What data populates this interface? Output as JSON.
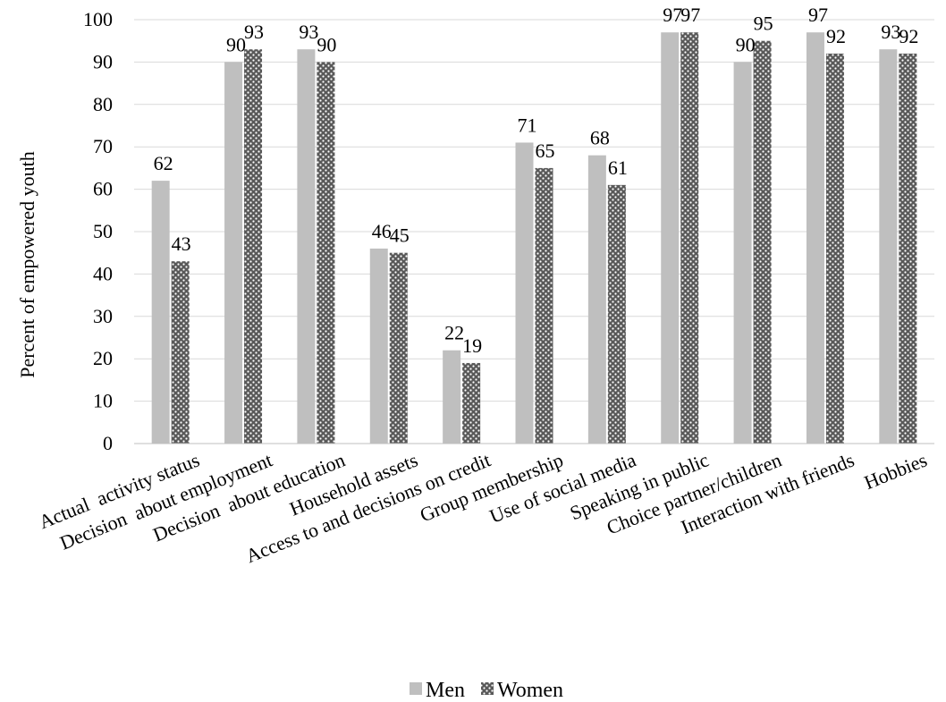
{
  "chart_data": {
    "type": "bar",
    "title": "",
    "xlabel": "",
    "ylabel": "Percent of empowered youth",
    "ylim": [
      0,
      100
    ],
    "yticks": [
      0,
      10,
      20,
      30,
      40,
      50,
      60,
      70,
      80,
      90,
      100
    ],
    "grid": true,
    "legend_position": "bottom",
    "categories": [
      "Actual  activity status",
      "Decision  about employment",
      "Decision  about education",
      "Household assets",
      "Access to and decisions on credit",
      "Group membership",
      "Use of social media",
      "Speaking in public",
      "Choice partner/children",
      "Interaction with friends",
      "Hobbies"
    ],
    "series": [
      {
        "name": "Men",
        "color": "#bfbfbf",
        "pattern": "solid",
        "values": [
          62,
          90,
          93,
          46,
          22,
          71,
          68,
          97,
          90,
          97,
          93
        ],
        "labels": [
          "62",
          "90",
          "93",
          "46",
          "22",
          "71",
          "68",
          "97",
          "90",
          "97",
          "93"
        ]
      },
      {
        "name": "Women",
        "color": "#595959",
        "pattern": "dotted",
        "values": [
          43,
          93,
          90,
          45,
          19,
          65,
          61,
          97,
          95,
          92,
          92
        ],
        "labels": [
          "43",
          "93",
          "90",
          "45",
          "19",
          "65",
          "61",
          "97",
          "95",
          "92",
          "92"
        ]
      }
    ]
  }
}
